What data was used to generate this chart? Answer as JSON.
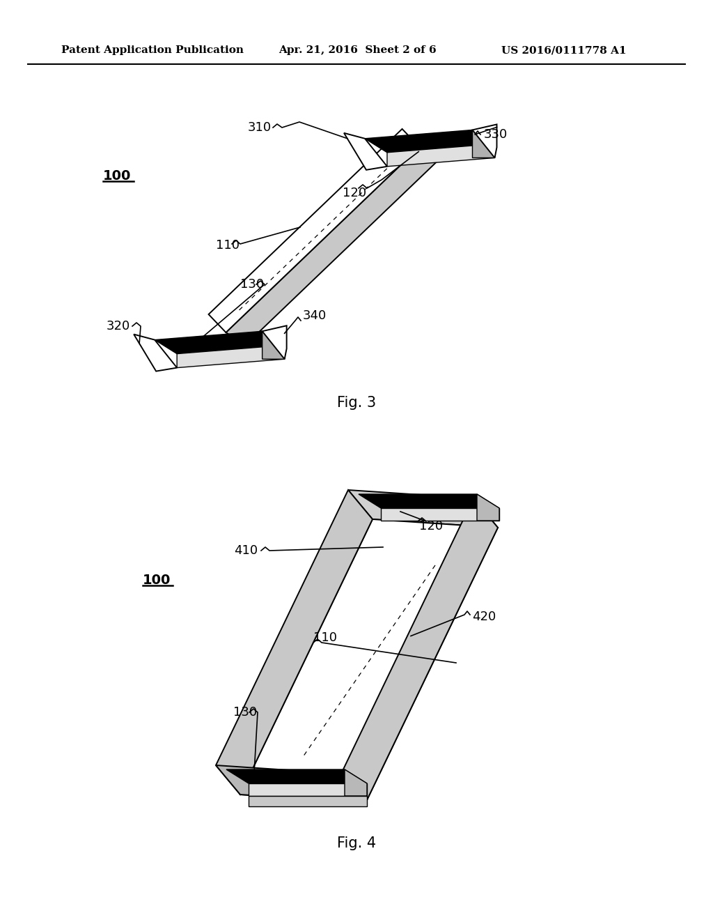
{
  "bg_color": "#ffffff",
  "header_left": "Patent Application Publication",
  "header_mid": "Apr. 21, 2016  Sheet 2 of 6",
  "header_right": "US 2016/0111778 A1",
  "fig3_caption": "Fig. 3",
  "fig4_caption": "Fig. 4",
  "label_100": "100",
  "label_110": "110",
  "label_120": "120",
  "label_130": "130",
  "label_310": "310",
  "label_320": "320",
  "label_330": "330",
  "label_340": "340",
  "label_410": "410",
  "label_420": "420"
}
